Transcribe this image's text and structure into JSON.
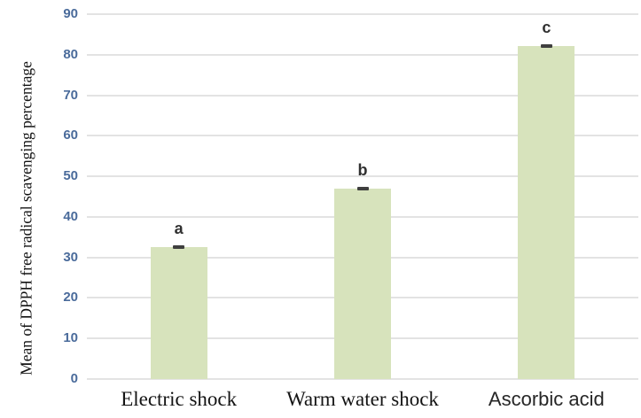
{
  "chart_data": {
    "type": "bar",
    "title": "",
    "ylabel": "Mean of DPPH free radical scavenging percentage",
    "xlabel": "",
    "categories": [
      "Electric shock",
      "Warm water shock",
      "Ascorbic acid"
    ],
    "values": [
      32.5,
      47.0,
      82.2
    ],
    "errors": [
      0.7,
      0.5,
      0.5
    ],
    "significance_letters": [
      "a",
      "b",
      "c"
    ],
    "category_label_styles": [
      "serif",
      "serif",
      "sans"
    ],
    "ylim": [
      0,
      90
    ],
    "yticks": [
      0,
      10,
      20,
      30,
      40,
      50,
      60,
      70,
      80,
      90
    ],
    "grid": true,
    "legend": "none",
    "bar_color": "#d7e3bc",
    "gridline_color": "#e3e3e3",
    "tick_label_color": "#4a6b9b",
    "error_bar_color": "#3f3f3f",
    "letter_color": "#303030",
    "background_color": "#ffffff"
  }
}
